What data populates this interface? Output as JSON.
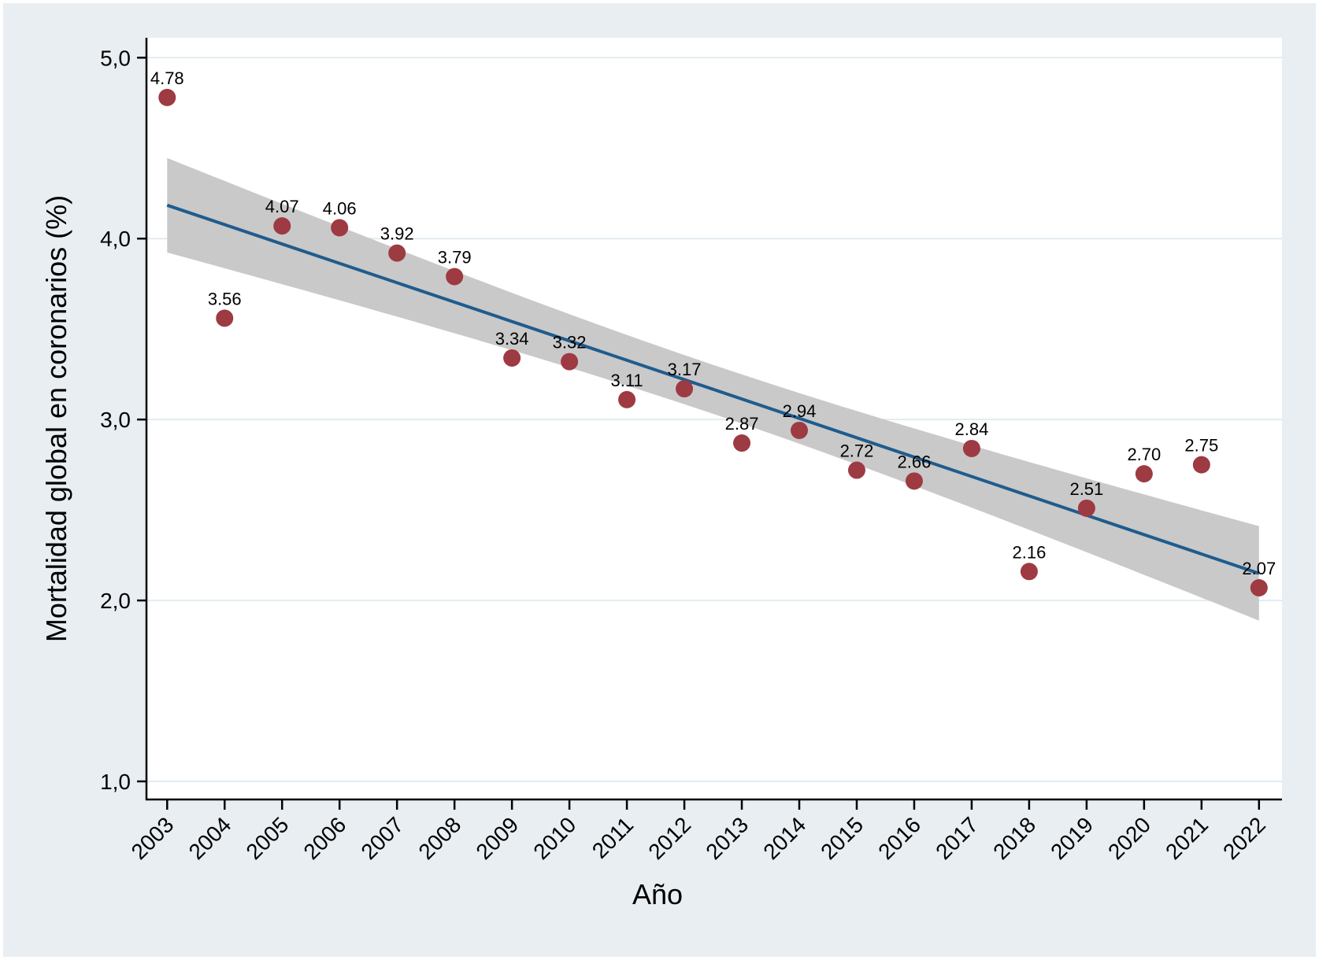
{
  "chart_data": {
    "type": "scatter",
    "title": "",
    "xlabel": "Año",
    "ylabel": "Mortalidad global en coronarios (%)",
    "x": [
      2003,
      2004,
      2005,
      2006,
      2007,
      2008,
      2009,
      2010,
      2011,
      2012,
      2013,
      2014,
      2015,
      2016,
      2017,
      2018,
      2019,
      2020,
      2021,
      2022
    ],
    "y": [
      4.78,
      3.56,
      4.07,
      4.06,
      3.92,
      3.79,
      3.34,
      3.32,
      3.11,
      3.17,
      2.87,
      2.94,
      2.72,
      2.66,
      2.84,
      2.16,
      2.51,
      2.7,
      2.75,
      2.07
    ],
    "point_labels": [
      "4.78",
      "3.56",
      "4.07",
      "4.06",
      "3.92",
      "3.79",
      "3.34",
      "3.32",
      "3.11",
      "3.17",
      "2.87",
      "2.94",
      "2.72",
      "2.66",
      "2.84",
      "2.16",
      "2.51",
      "2.70",
      "2.75",
      "2.07"
    ],
    "x_tick_labels": [
      "2003",
      "2004",
      "2005",
      "2006",
      "2007",
      "2008",
      "2009",
      "2010",
      "2011",
      "2012",
      "2013",
      "2014",
      "2015",
      "2016",
      "2017",
      "2018",
      "2019",
      "2020",
      "2021",
      "2022"
    ],
    "y_ticks": {
      "values": [
        1,
        2,
        3,
        4,
        5
      ],
      "labels": [
        "1,0",
        "2,0",
        "3,0",
        "4,0",
        "5,0"
      ]
    },
    "xlim": [
      2002.64,
      2022.4
    ],
    "ylim": [
      0.9,
      5.11
    ],
    "grid": "horizontal",
    "legend": "none",
    "overlays": {
      "line": "linear-fit",
      "band": "confidence-interval-95"
    }
  },
  "colors": {
    "marker": "#9e3a42",
    "fit_line": "#1f5c8e",
    "ci_band": "#c9c9c9",
    "background": "#e8eef2",
    "plot_background": "#ffffff",
    "gridline": "#e2ecf1",
    "axis": "#000000",
    "text": "#000000"
  }
}
